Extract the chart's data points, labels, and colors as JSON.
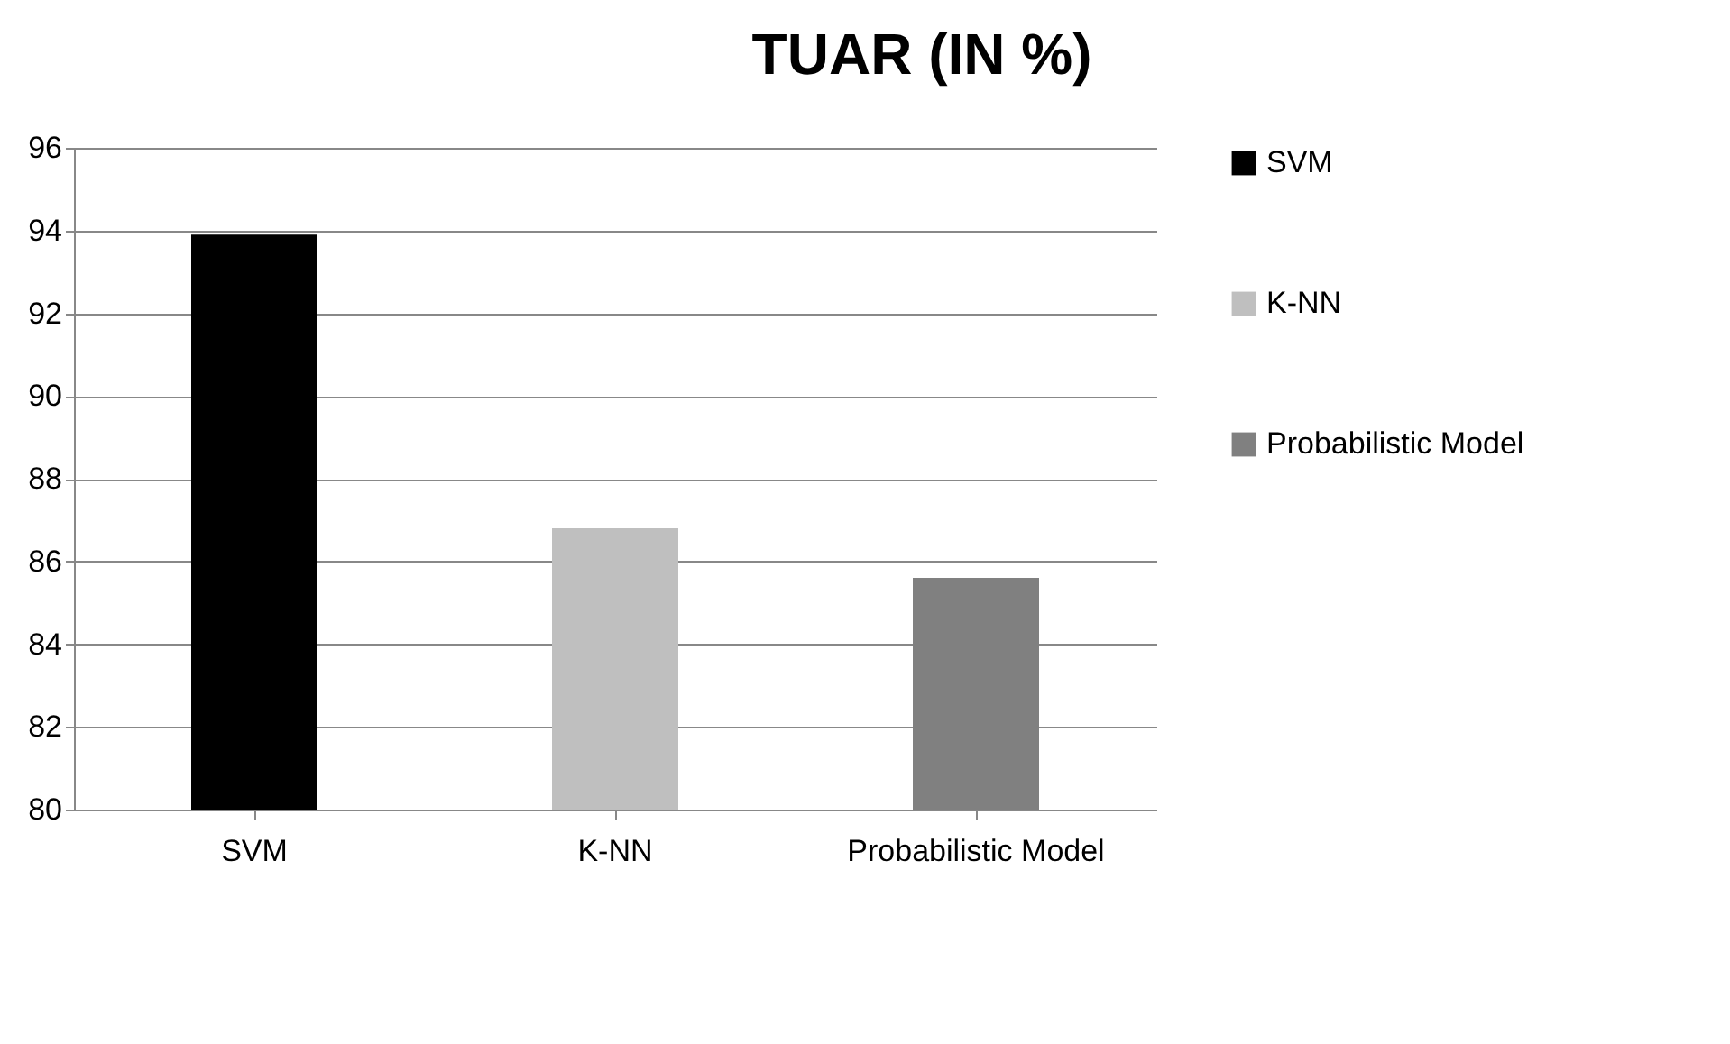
{
  "chart_data": {
    "type": "bar",
    "title": "TUAR (IN %)",
    "categories": [
      "SVM",
      "K-NN",
      "Probabilistic Model"
    ],
    "series": [
      {
        "name": "SVM",
        "color": "#000000",
        "values": [
          93.9,
          null,
          null
        ]
      },
      {
        "name": "K-NN",
        "color": "#bfbfbf",
        "values": [
          null,
          86.8,
          null
        ]
      },
      {
        "name": "Probabilistic Model",
        "color": "#808080",
        "values": [
          null,
          null,
          85.6
        ]
      }
    ],
    "ylim": [
      80,
      96
    ],
    "yticks": [
      80,
      82,
      84,
      86,
      88,
      90,
      92,
      94,
      96
    ],
    "grid": "y",
    "legend": "right"
  }
}
